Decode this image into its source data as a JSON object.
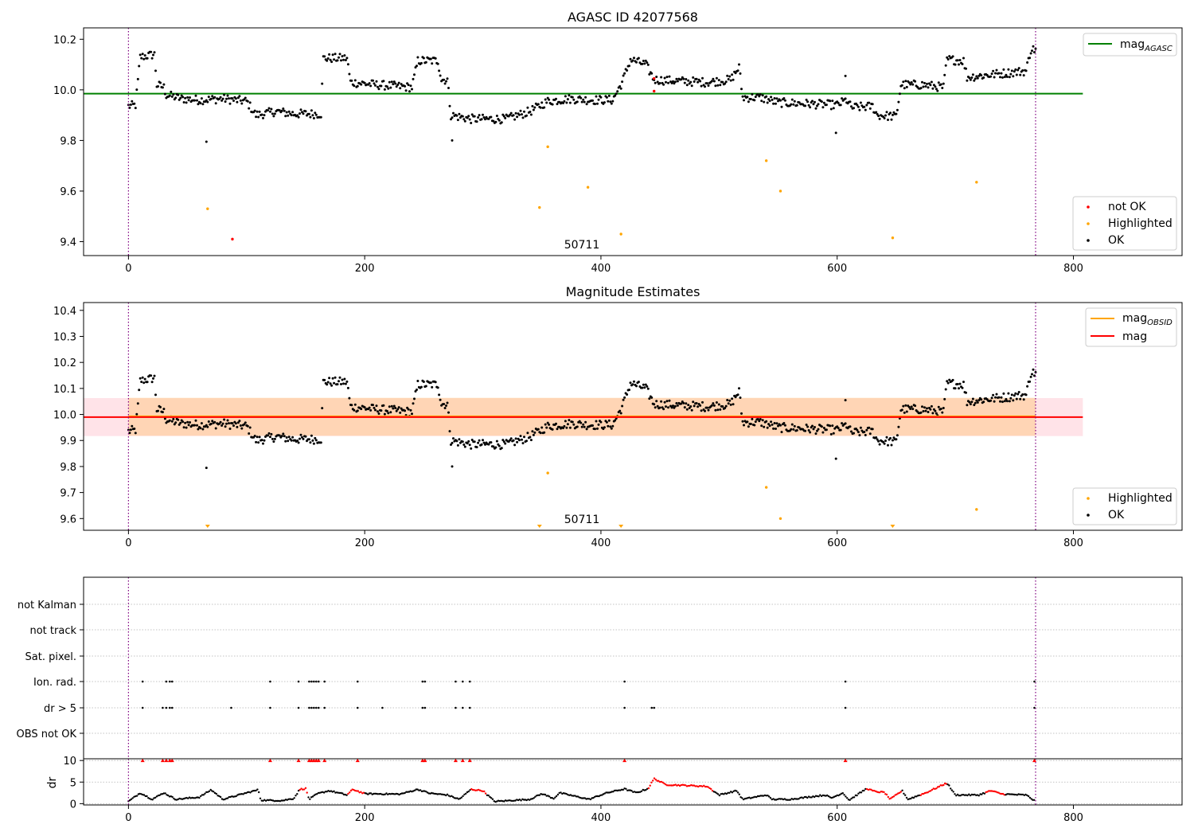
{
  "figure": {
    "obsid_label": "50711",
    "colors": {
      "ok": "#000000",
      "not_ok": "#ff0000",
      "highlighted": "#ffa500",
      "agasc_line": "#008000",
      "mag_line": "#ff0000",
      "mag_obsid_line": "#ffa500",
      "obs_boundary": "#800080",
      "mag_band": "#ffc0cb",
      "obsid_band": "#ffa500"
    }
  },
  "chart_data": [
    {
      "type": "scatter",
      "title": "AGASC ID 42077568",
      "xlim": [
        -38,
        892
      ],
      "ylim": [
        9.345,
        10.245
      ],
      "xticks": [
        0,
        200,
        400,
        600,
        800
      ],
      "yticks": [
        9.4,
        9.6,
        9.8,
        10.0,
        10.2
      ],
      "ytick_labels": [
        "9.4",
        "9.6",
        "9.8",
        "10.0",
        "10.2"
      ],
      "grid": false,
      "obs_boundaries": [
        0,
        768
      ],
      "mag_agasc": 9.985,
      "legend_lines": [
        {
          "label": "mag",
          "subscript": "AGASC"
        }
      ],
      "legend_points": [
        "not OK",
        "Highlighted",
        "OK"
      ],
      "legend_position": "top-right / lower-right",
      "not_ok_points": [
        [
          88,
          9.41
        ],
        [
          445,
          9.995
        ],
        [
          445,
          10.045
        ]
      ],
      "highlighted_points": [
        [
          67,
          9.53
        ],
        [
          355,
          9.775
        ],
        [
          348,
          9.535
        ],
        [
          389,
          9.615
        ],
        [
          417,
          9.43
        ],
        [
          540,
          9.72
        ],
        [
          552,
          9.6
        ],
        [
          647,
          9.415
        ],
        [
          718,
          9.635
        ]
      ],
      "ok_trend": [
        [
          0,
          9.935
        ],
        [
          6,
          9.94
        ],
        [
          10,
          10.13
        ],
        [
          22,
          10.14
        ],
        [
          24,
          10.02
        ],
        [
          30,
          10.01
        ],
        [
          32,
          9.98
        ],
        [
          45,
          9.965
        ],
        [
          60,
          9.96
        ],
        [
          80,
          9.965
        ],
        [
          100,
          9.955
        ],
        [
          108,
          9.9
        ],
        [
          125,
          9.915
        ],
        [
          140,
          9.905
        ],
        [
          163,
          9.905
        ],
        [
          165,
          10.125
        ],
        [
          185,
          10.125
        ],
        [
          188,
          10.03
        ],
        [
          210,
          10.02
        ],
        [
          240,
          10.01
        ],
        [
          245,
          10.115
        ],
        [
          262,
          10.115
        ],
        [
          265,
          10.04
        ],
        [
          270,
          10.04
        ],
        [
          273,
          9.9
        ],
        [
          290,
          9.885
        ],
        [
          320,
          9.885
        ],
        [
          340,
          9.915
        ],
        [
          355,
          9.955
        ],
        [
          375,
          9.965
        ],
        [
          390,
          9.96
        ],
        [
          410,
          9.96
        ],
        [
          418,
          10.03
        ],
        [
          425,
          10.12
        ],
        [
          438,
          10.1
        ],
        [
          445,
          10.04
        ],
        [
          465,
          10.035
        ],
        [
          490,
          10.03
        ],
        [
          510,
          10.04
        ],
        [
          517,
          10.09
        ],
        [
          520,
          9.97
        ],
        [
          535,
          9.97
        ],
        [
          550,
          9.95
        ],
        [
          575,
          9.945
        ],
        [
          600,
          9.94
        ],
        [
          608,
          9.96
        ],
        [
          612,
          9.93
        ],
        [
          630,
          9.935
        ],
        [
          634,
          9.9
        ],
        [
          650,
          9.895
        ],
        [
          654,
          10.02
        ],
        [
          672,
          10.02
        ],
        [
          690,
          10.01
        ],
        [
          693,
          10.12
        ],
        [
          707,
          10.115
        ],
        [
          710,
          10.05
        ],
        [
          730,
          10.06
        ],
        [
          760,
          10.075
        ],
        [
          764,
          10.16
        ],
        [
          768,
          10.16
        ]
      ],
      "ok_outliers": [
        [
          66,
          9.795
        ],
        [
          274,
          9.8
        ],
        [
          599,
          9.83
        ],
        [
          607,
          10.055
        ]
      ]
    },
    {
      "type": "scatter",
      "title": "Magnitude Estimates",
      "xlim": [
        -38,
        892
      ],
      "ylim": [
        9.555,
        10.43
      ],
      "xticks": [
        0,
        200,
        400,
        600,
        800
      ],
      "yticks": [
        9.6,
        9.7,
        9.8,
        9.9,
        10.0,
        10.1,
        10.2,
        10.3,
        10.4
      ],
      "ytick_labels": [
        "9.6",
        "9.7",
        "9.8",
        "9.9",
        "10.0",
        "10.1",
        "10.2",
        "10.3",
        "10.4"
      ],
      "grid": false,
      "obs_boundaries": [
        0,
        768
      ],
      "mag": 9.99,
      "mag_band": [
        9.917,
        10.063
      ],
      "mag_obsid": 9.993,
      "obsid_band": [
        9.918,
        10.064
      ],
      "obsid_span": [
        0,
        768
      ],
      "mag_span": [
        -38,
        808
      ],
      "legend_lines": [
        {
          "label": "mag",
          "subscript": "OBSID"
        },
        {
          "label": "mag",
          "subscript": ""
        }
      ],
      "legend_points": [
        "Highlighted",
        "OK"
      ],
      "legend_position": "top-right / lower-right",
      "highlighted_points": [
        [
          355,
          9.775
        ],
        [
          540,
          9.72
        ],
        [
          552,
          9.6
        ],
        [
          718,
          9.635
        ]
      ],
      "highlighted_clipped_x": [
        67,
        348,
        417,
        647
      ]
    },
    {
      "type": "scatter",
      "title": "",
      "xlim": [
        -38,
        892
      ],
      "xticks": [
        0,
        200,
        400,
        600,
        800
      ],
      "obs_boundaries": [
        0,
        768
      ],
      "flag_rows": [
        "not Kalman",
        "not track",
        "Sat. pixel.",
        "Ion. rad.",
        "dr > 5",
        "OBS not OK"
      ],
      "flags": {
        "Ion. rad.": [
          12,
          32,
          35,
          37,
          120,
          144,
          153,
          155,
          157,
          159,
          161,
          166,
          194,
          249,
          251,
          277,
          283,
          289,
          420,
          607,
          767
        ],
        "dr > 5": [
          12,
          29,
          32,
          35,
          37,
          87,
          120,
          144,
          153,
          155,
          157,
          159,
          161,
          166,
          194,
          215,
          249,
          251,
          277,
          283,
          289,
          420,
          443,
          445,
          607,
          767
        ]
      },
      "dr_ylabel": "dr",
      "dr_ylim": [
        -0.3,
        10.4
      ],
      "dr_yticks": [
        0,
        5,
        10
      ],
      "dr_threshold": 5,
      "dr_capped": [
        12,
        29,
        32,
        35,
        37,
        120,
        144,
        153,
        155,
        157,
        159,
        161,
        166,
        194,
        249,
        251,
        277,
        283,
        289,
        420,
        607,
        767
      ],
      "dr_trend": [
        [
          0,
          0.5
        ],
        [
          10,
          2.5
        ],
        [
          20,
          1.0
        ],
        [
          30,
          2.5
        ],
        [
          40,
          1.0
        ],
        [
          60,
          1.5
        ],
        [
          70,
          3.2
        ],
        [
          80,
          1.0
        ],
        [
          100,
          2.5
        ],
        [
          110,
          3.2
        ],
        [
          112,
          0.8
        ],
        [
          130,
          0.7
        ],
        [
          140,
          1.2
        ],
        [
          145,
          3.3
        ],
        [
          150,
          3.5
        ],
        [
          153,
          1.0
        ],
        [
          160,
          2.3
        ],
        [
          170,
          3.0
        ],
        [
          185,
          2.0
        ],
        [
          190,
          3.3
        ],
        [
          200,
          2.3
        ],
        [
          230,
          2.2
        ],
        [
          245,
          3.3
        ],
        [
          255,
          2.4
        ],
        [
          270,
          2.0
        ],
        [
          280,
          1.0
        ],
        [
          290,
          3.3
        ],
        [
          300,
          3.0
        ],
        [
          310,
          0.5
        ],
        [
          340,
          1.0
        ],
        [
          350,
          2.3
        ],
        [
          360,
          1.2
        ],
        [
          365,
          2.5
        ],
        [
          390,
          1.0
        ],
        [
          405,
          2.5
        ],
        [
          420,
          3.4
        ],
        [
          430,
          2.5
        ],
        [
          440,
          3.5
        ],
        [
          445,
          5.8
        ],
        [
          455,
          4.4
        ],
        [
          490,
          4.0
        ],
        [
          500,
          2.0
        ],
        [
          515,
          3.0
        ],
        [
          520,
          1.0
        ],
        [
          530,
          1.5
        ],
        [
          540,
          2.0
        ],
        [
          545,
          1.0
        ],
        [
          560,
          1.0
        ],
        [
          590,
          2.0
        ],
        [
          595,
          1.3
        ],
        [
          605,
          2.5
        ],
        [
          610,
          0.8
        ],
        [
          625,
          3.5
        ],
        [
          632,
          2.8
        ],
        [
          640,
          2.6
        ],
        [
          645,
          1.0
        ],
        [
          655,
          3.0
        ],
        [
          660,
          1.0
        ],
        [
          675,
          2.5
        ],
        [
          693,
          4.8
        ],
        [
          700,
          2.0
        ],
        [
          720,
          2.0
        ],
        [
          730,
          3.0
        ],
        [
          740,
          2.2
        ],
        [
          760,
          2.0
        ],
        [
          768,
          0.5
        ]
      ],
      "dr_red_ranges": [
        [
          145,
          152
        ],
        [
          185,
          200
        ],
        [
          290,
          303
        ],
        [
          440,
          495
        ],
        [
          625,
          655
        ],
        [
          670,
          693
        ],
        [
          725,
          742
        ]
      ]
    }
  ]
}
